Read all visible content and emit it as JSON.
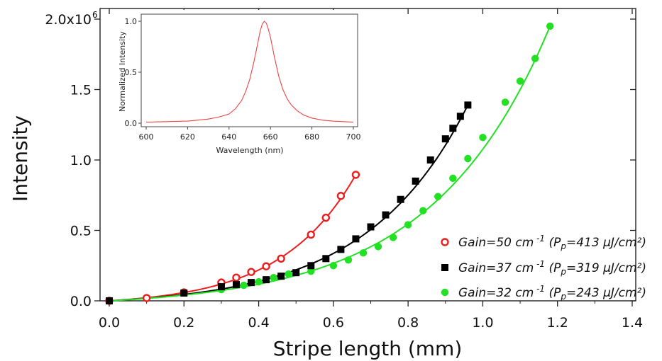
{
  "chart_data": [
    {
      "type": "scatter",
      "xlabel": "Stripe length (mm)",
      "ylabel": "Intensity",
      "xlim": [
        0,
        1.4
      ],
      "ylim": [
        0,
        2000000
      ],
      "x_ticks": [
        "0.0",
        "0.2",
        "0.4",
        "0.6",
        "0.8",
        "1.0",
        "1.2",
        "1.4"
      ],
      "y_ticks": [
        "0.0",
        "0.5",
        "1.0",
        "1.5",
        "2.0x10"
      ],
      "y_tick_exponent": "6",
      "legend_position": "bottom-right",
      "series": [
        {
          "name": "Gain=50 cm",
          "name_sup": "-1",
          "name_pump": "(P",
          "name_pump_sub": "p",
          "name_pump_rest": "=413 μJ/cm²)",
          "marker": "open-circle",
          "color": "#ee1c1c",
          "gain_per_cm": 50,
          "x": [
            0.0,
            0.1,
            0.2,
            0.3,
            0.34,
            0.38,
            0.42,
            0.46,
            0.54,
            0.58,
            0.62,
            0.66
          ],
          "y": [
            0,
            20000,
            60000,
            130000,
            165000,
            205000,
            245000,
            300000,
            470000,
            590000,
            745000,
            895000
          ]
        },
        {
          "name": "Gain=37 cm",
          "name_sup": "-1",
          "name_pump": "(P",
          "name_pump_sub": "p",
          "name_pump_rest": "=319 μJ/cm²)",
          "marker": "filled-square",
          "color": "#000000",
          "gain_per_cm": 37,
          "x": [
            0.0,
            0.2,
            0.3,
            0.34,
            0.38,
            0.42,
            0.46,
            0.5,
            0.54,
            0.58,
            0.62,
            0.66,
            0.7,
            0.74,
            0.78,
            0.82,
            0.86,
            0.9,
            0.92,
            0.94,
            0.96
          ],
          "y": [
            0,
            55000,
            100000,
            115000,
            130000,
            150000,
            175000,
            200000,
            250000,
            300000,
            365000,
            440000,
            525000,
            610000,
            720000,
            850000,
            1000000,
            1150000,
            1225000,
            1310000,
            1390000
          ]
        },
        {
          "name": "Gain=32 cm",
          "name_sup": "-1",
          "name_pump": "(P",
          "name_pump_sub": "p",
          "name_pump_rest": "=243 μJ/cm²)",
          "marker": "filled-circle",
          "color": "#22e022",
          "gain_per_cm": 32,
          "x": [
            0.0,
            0.3,
            0.36,
            0.4,
            0.44,
            0.48,
            0.54,
            0.6,
            0.64,
            0.68,
            0.72,
            0.76,
            0.8,
            0.84,
            0.88,
            0.92,
            0.96,
            1.0,
            1.06,
            1.1,
            1.14,
            1.18
          ],
          "y": [
            0,
            80000,
            110000,
            135000,
            165000,
            190000,
            210000,
            250000,
            290000,
            340000,
            385000,
            450000,
            540000,
            640000,
            740000,
            870000,
            1010000,
            1160000,
            1410000,
            1560000,
            1720000,
            1950000
          ]
        }
      ]
    },
    {
      "type": "line",
      "xlabel": "Wavelength (nm)",
      "ylabel": "Normalized Intensity",
      "xlim": [
        600,
        700
      ],
      "ylim": [
        0,
        1.0
      ],
      "x_ticks": [
        "600",
        "620",
        "640",
        "660",
        "680",
        "700"
      ],
      "y_ticks": [
        "0.0",
        "0.5",
        "1.0"
      ],
      "series": [
        {
          "color": "#ee4444",
          "peak_wavelength_nm": 657,
          "fwhm_nm": 12,
          "x": [
            600,
            610,
            620,
            625,
            630,
            635,
            640,
            643,
            646,
            648,
            650,
            652,
            654,
            655,
            656,
            657,
            658,
            659,
            660,
            662,
            664,
            666,
            668,
            670,
            673,
            676,
            680,
            685,
            690,
            700
          ],
          "y": [
            0.01,
            0.015,
            0.02,
            0.03,
            0.04,
            0.06,
            0.09,
            0.14,
            0.22,
            0.31,
            0.43,
            0.6,
            0.8,
            0.9,
            0.97,
            1.0,
            0.98,
            0.92,
            0.84,
            0.64,
            0.46,
            0.33,
            0.24,
            0.18,
            0.12,
            0.08,
            0.05,
            0.03,
            0.02,
            0.01
          ]
        }
      ]
    }
  ]
}
